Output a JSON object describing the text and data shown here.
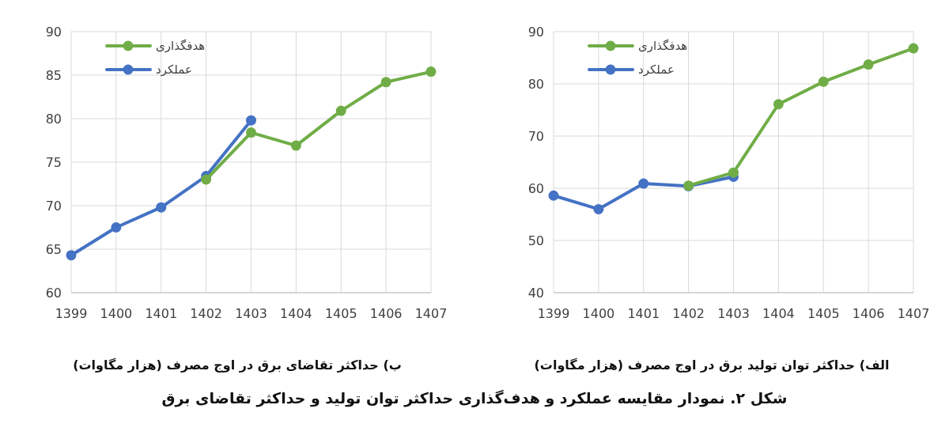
{
  "chart_data": [
    {
      "type": "line",
      "title": "الف) حداکثر توان تولید برق در اوج مصرف (هزار مگاوات)",
      "categories": [
        "1399",
        "1400",
        "1401",
        "1402",
        "1403",
        "1404",
        "1405",
        "1406",
        "1407"
      ],
      "series": [
        {
          "name": "هدفگذاری",
          "color": "#70ad47",
          "values": [
            null,
            null,
            null,
            60.5,
            63.0,
            76.1,
            80.4,
            83.7,
            86.8
          ]
        },
        {
          "name": "عملکرد",
          "color": "#4472c4",
          "values": [
            58.6,
            56.0,
            60.9,
            60.4,
            62.2,
            null,
            null,
            null,
            null
          ]
        }
      ],
      "ylim": [
        40,
        90
      ],
      "yticks": [
        40,
        50,
        60,
        70,
        80,
        90
      ],
      "grid": true,
      "legend": "top left",
      "marker": "circle",
      "line_style": "solid",
      "annotations": [
        "شکل ۲. نمودار مقایسه عملکرد و هدف‌گذاری حداکثر توان تولید و حداکثر تقاضای برق"
      ]
    },
    {
      "type": "line",
      "title": "ب) حداکثر تقاضای برق در اوج مصرف (هزار مگاوات)",
      "categories": [
        "1399",
        "1400",
        "1401",
        "1402",
        "1403",
        "1404",
        "1405",
        "1406",
        "1407"
      ],
      "series": [
        {
          "name": "هدفگذاری",
          "color": "#70ad47",
          "values": [
            null,
            null,
            null,
            73.0,
            78.4,
            76.9,
            80.9,
            84.2,
            85.4
          ]
        },
        {
          "name": "عملکرد",
          "color": "#4472c4",
          "values": [
            64.3,
            67.5,
            69.8,
            73.4,
            79.8,
            null,
            null,
            null,
            null
          ]
        }
      ],
      "ylim": [
        60,
        90
      ],
      "yticks": [
        60,
        65,
        70,
        75,
        80,
        85,
        90
      ],
      "grid": true,
      "legend": "top left",
      "marker": "circle",
      "line_style": "solid"
    }
  ]
}
